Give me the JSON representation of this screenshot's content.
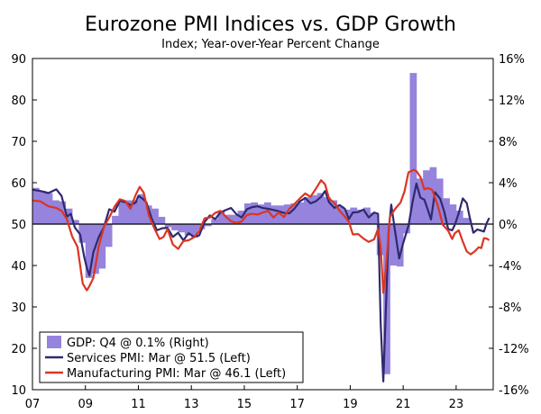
{
  "chart_data": {
    "type": "bar+line",
    "title": "Eurozone PMI Indices vs. GDP Growth",
    "subtitle": "Index; Year-over-Year Percent Change",
    "x_ticks": [
      "07",
      "09",
      "11",
      "13",
      "15",
      "17",
      "19",
      "21",
      "23"
    ],
    "x_range": [
      2007.0,
      2024.4
    ],
    "left_axis": {
      "ticks": [
        "90",
        "80",
        "70",
        "60",
        "50",
        "40",
        "30",
        "20",
        "10"
      ],
      "range": [
        10,
        90
      ]
    },
    "right_axis": {
      "ticks": [
        "16%",
        "12%",
        "8%",
        "4%",
        "0%",
        "-4%",
        "-8%",
        "-12%",
        "-16%"
      ],
      "range": [
        -16,
        16
      ]
    },
    "reference_line": 50,
    "colors": {
      "gdp": "#9583dd",
      "services": "#2e2a6e",
      "manufacturing": "#dc3522",
      "axis": "#000000"
    },
    "legend": [
      "GDP: Q4 @ 0.1% (Right)",
      "Services PMI: Mar @ 51.5 (Left)",
      "Manufacturing PMI: Mar @ 46.1 (Left)"
    ],
    "gdp_series": {
      "name": "GDP: Q4 @ 0.1% (Right)",
      "axis": "right",
      "quarters": [
        2007.0,
        2007.25,
        2007.5,
        2007.75,
        2008.0,
        2008.25,
        2008.5,
        2008.75,
        2009.0,
        2009.25,
        2009.5,
        2009.75,
        2010.0,
        2010.25,
        2010.5,
        2010.75,
        2011.0,
        2011.25,
        2011.5,
        2011.75,
        2012.0,
        2012.25,
        2012.5,
        2012.75,
        2013.0,
        2013.25,
        2013.5,
        2013.75,
        2014.0,
        2014.25,
        2014.5,
        2014.75,
        2015.0,
        2015.25,
        2015.5,
        2015.75,
        2016.0,
        2016.25,
        2016.5,
        2016.75,
        2017.0,
        2017.25,
        2017.5,
        2017.75,
        2018.0,
        2018.25,
        2018.5,
        2018.75,
        2019.0,
        2019.25,
        2019.5,
        2019.75,
        2020.0,
        2020.25,
        2020.5,
        2020.75,
        2021.0,
        2021.25,
        2021.5,
        2021.75,
        2022.0,
        2022.25,
        2022.5,
        2022.75,
        2023.0,
        2023.25,
        2023.5,
        2023.75
      ],
      "values": [
        3.5,
        3.2,
        3.0,
        2.3,
        2.2,
        1.5,
        0.4,
        -1.8,
        -5.2,
        -4.8,
        -4.3,
        -2.2,
        0.8,
        2.1,
        2.3,
        2.3,
        2.9,
        1.8,
        1.5,
        0.7,
        -0.3,
        -0.6,
        -0.8,
        -1.1,
        -1.3,
        -0.5,
        -0.2,
        0.5,
        1.3,
        0.9,
        0.9,
        1.3,
        2.0,
        2.1,
        1.9,
        2.1,
        1.8,
        1.8,
        1.9,
        2.0,
        2.1,
        2.6,
        2.8,
        3.0,
        2.6,
        2.3,
        1.7,
        1.4,
        1.6,
        1.4,
        1.6,
        1.1,
        -3.0,
        -14.5,
        -4.0,
        -4.1,
        -0.9,
        14.6,
        4.4,
        5.2,
        5.5,
        4.4,
        2.5,
        1.9,
        1.3,
        0.6,
        0.1,
        0.1
      ]
    },
    "services_series": {
      "name": "Services PMI: Mar @ 51.5 (Left)",
      "axis": "left",
      "points": [
        [
          2007.0,
          58.3
        ],
        [
          2007.3,
          58.0
        ],
        [
          2007.6,
          57.5
        ],
        [
          2007.9,
          58.4
        ],
        [
          2008.1,
          56.8
        ],
        [
          2008.3,
          51.8
        ],
        [
          2008.45,
          52.5
        ],
        [
          2008.6,
          49.2
        ],
        [
          2008.8,
          47.5
        ],
        [
          2008.95,
          42.2
        ],
        [
          2009.05,
          39.5
        ],
        [
          2009.15,
          37.6
        ],
        [
          2009.3,
          43.2
        ],
        [
          2009.5,
          46.8
        ],
        [
          2009.7,
          49.3
        ],
        [
          2009.9,
          53.6
        ],
        [
          2010.1,
          53.0
        ],
        [
          2010.3,
          55.6
        ],
        [
          2010.5,
          55.3
        ],
        [
          2010.7,
          54.6
        ],
        [
          2010.9,
          55.2
        ],
        [
          2011.0,
          56.8
        ],
        [
          2011.15,
          56.2
        ],
        [
          2011.3,
          55.3
        ],
        [
          2011.5,
          51.4
        ],
        [
          2011.7,
          48.5
        ],
        [
          2011.9,
          49.0
        ],
        [
          2012.1,
          49.1
        ],
        [
          2012.3,
          46.9
        ],
        [
          2012.5,
          47.9
        ],
        [
          2012.7,
          46.1
        ],
        [
          2012.9,
          47.8
        ],
        [
          2013.1,
          46.9
        ],
        [
          2013.3,
          47.3
        ],
        [
          2013.5,
          50.5
        ],
        [
          2013.7,
          52.1
        ],
        [
          2013.9,
          51.2
        ],
        [
          2014.1,
          52.8
        ],
        [
          2014.3,
          53.4
        ],
        [
          2014.5,
          53.9
        ],
        [
          2014.7,
          52.4
        ],
        [
          2014.9,
          51.6
        ],
        [
          2015.1,
          53.6
        ],
        [
          2015.3,
          54.1
        ],
        [
          2015.5,
          54.3
        ],
        [
          2015.7,
          53.9
        ],
        [
          2015.9,
          53.7
        ],
        [
          2016.1,
          53.4
        ],
        [
          2016.3,
          53.1
        ],
        [
          2016.5,
          52.7
        ],
        [
          2016.7,
          52.6
        ],
        [
          2016.9,
          53.8
        ],
        [
          2017.1,
          55.5
        ],
        [
          2017.3,
          56.3
        ],
        [
          2017.5,
          55.0
        ],
        [
          2017.7,
          55.5
        ],
        [
          2017.9,
          56.6
        ],
        [
          2018.05,
          58.0
        ],
        [
          2018.2,
          55.3
        ],
        [
          2018.4,
          53.9
        ],
        [
          2018.6,
          54.6
        ],
        [
          2018.8,
          53.7
        ],
        [
          2018.95,
          51.2
        ],
        [
          2019.1,
          52.8
        ],
        [
          2019.3,
          52.9
        ],
        [
          2019.5,
          53.5
        ],
        [
          2019.7,
          51.6
        ],
        [
          2019.9,
          52.8
        ],
        [
          2020.05,
          52.5
        ],
        [
          2020.15,
          26.0
        ],
        [
          2020.25,
          12.0
        ],
        [
          2020.35,
          30.0
        ],
        [
          2020.45,
          48.3
        ],
        [
          2020.55,
          54.7
        ],
        [
          2020.7,
          48.0
        ],
        [
          2020.85,
          41.7
        ],
        [
          2021.0,
          45.4
        ],
        [
          2021.2,
          49.6
        ],
        [
          2021.35,
          55.2
        ],
        [
          2021.5,
          59.8
        ],
        [
          2021.65,
          56.4
        ],
        [
          2021.8,
          55.9
        ],
        [
          2021.95,
          53.1
        ],
        [
          2022.05,
          51.1
        ],
        [
          2022.2,
          57.7
        ],
        [
          2022.4,
          56.1
        ],
        [
          2022.55,
          53.0
        ],
        [
          2022.7,
          48.8
        ],
        [
          2022.85,
          48.5
        ],
        [
          2022.95,
          49.8
        ],
        [
          2023.1,
          52.7
        ],
        [
          2023.25,
          56.2
        ],
        [
          2023.4,
          55.1
        ],
        [
          2023.5,
          52.0
        ],
        [
          2023.65,
          47.9
        ],
        [
          2023.8,
          48.7
        ],
        [
          2023.95,
          48.4
        ],
        [
          2024.05,
          48.2
        ],
        [
          2024.15,
          50.2
        ],
        [
          2024.25,
          51.5
        ]
      ]
    },
    "manufacturing_series": {
      "name": "Manufacturing PMI: Mar @ 46.1 (Left)",
      "axis": "left",
      "points": [
        [
          2007.0,
          55.7
        ],
        [
          2007.3,
          55.5
        ],
        [
          2007.6,
          54.3
        ],
        [
          2007.9,
          53.9
        ],
        [
          2008.1,
          53.2
        ],
        [
          2008.3,
          51.2
        ],
        [
          2008.5,
          47.0
        ],
        [
          2008.7,
          44.5
        ],
        [
          2008.9,
          35.6
        ],
        [
          2009.05,
          34.0
        ],
        [
          2009.15,
          35.0
        ],
        [
          2009.3,
          37.0
        ],
        [
          2009.5,
          44.5
        ],
        [
          2009.7,
          49.3
        ],
        [
          2009.9,
          51.6
        ],
        [
          2010.1,
          54.2
        ],
        [
          2010.3,
          56.0
        ],
        [
          2010.5,
          55.6
        ],
        [
          2010.7,
          53.7
        ],
        [
          2010.9,
          57.1
        ],
        [
          2011.05,
          59.0
        ],
        [
          2011.2,
          57.6
        ],
        [
          2011.4,
          52.0
        ],
        [
          2011.6,
          49.0
        ],
        [
          2011.8,
          46.4
        ],
        [
          2011.95,
          46.9
        ],
        [
          2012.1,
          48.8
        ],
        [
          2012.3,
          45.1
        ],
        [
          2012.5,
          44.0
        ],
        [
          2012.7,
          45.9
        ],
        [
          2012.9,
          46.1
        ],
        [
          2013.1,
          46.8
        ],
        [
          2013.3,
          48.3
        ],
        [
          2013.5,
          51.4
        ],
        [
          2013.7,
          51.6
        ],
        [
          2013.9,
          52.7
        ],
        [
          2014.1,
          53.2
        ],
        [
          2014.3,
          51.8
        ],
        [
          2014.5,
          50.7
        ],
        [
          2014.7,
          50.3
        ],
        [
          2014.9,
          50.6
        ],
        [
          2015.1,
          52.2
        ],
        [
          2015.3,
          52.5
        ],
        [
          2015.5,
          52.3
        ],
        [
          2015.7,
          52.8
        ],
        [
          2015.9,
          53.2
        ],
        [
          2016.1,
          51.6
        ],
        [
          2016.3,
          52.8
        ],
        [
          2016.5,
          51.7
        ],
        [
          2016.7,
          53.7
        ],
        [
          2016.9,
          54.9
        ],
        [
          2017.1,
          56.2
        ],
        [
          2017.3,
          57.4
        ],
        [
          2017.5,
          56.6
        ],
        [
          2017.7,
          58.5
        ],
        [
          2017.9,
          60.6
        ],
        [
          2018.05,
          59.6
        ],
        [
          2018.2,
          56.2
        ],
        [
          2018.4,
          55.1
        ],
        [
          2018.6,
          53.2
        ],
        [
          2018.8,
          51.8
        ],
        [
          2018.95,
          50.5
        ],
        [
          2019.1,
          47.5
        ],
        [
          2019.3,
          47.6
        ],
        [
          2019.5,
          46.5
        ],
        [
          2019.7,
          45.7
        ],
        [
          2019.9,
          46.3
        ],
        [
          2020.05,
          48.8
        ],
        [
          2020.15,
          44.5
        ],
        [
          2020.25,
          33.4
        ],
        [
          2020.35,
          39.4
        ],
        [
          2020.5,
          51.8
        ],
        [
          2020.7,
          53.7
        ],
        [
          2020.9,
          55.2
        ],
        [
          2021.05,
          57.9
        ],
        [
          2021.2,
          62.5
        ],
        [
          2021.4,
          63.1
        ],
        [
          2021.5,
          62.8
        ],
        [
          2021.65,
          61.4
        ],
        [
          2021.8,
          58.4
        ],
        [
          2021.95,
          58.7
        ],
        [
          2022.1,
          58.2
        ],
        [
          2022.3,
          54.6
        ],
        [
          2022.5,
          49.8
        ],
        [
          2022.7,
          48.4
        ],
        [
          2022.85,
          46.4
        ],
        [
          2022.95,
          47.8
        ],
        [
          2023.1,
          48.5
        ],
        [
          2023.25,
          45.8
        ],
        [
          2023.4,
          43.4
        ],
        [
          2023.55,
          42.7
        ],
        [
          2023.7,
          43.4
        ],
        [
          2023.85,
          44.4
        ],
        [
          2023.95,
          44.2
        ],
        [
          2024.05,
          46.6
        ],
        [
          2024.15,
          46.5
        ],
        [
          2024.25,
          46.1
        ]
      ]
    }
  }
}
